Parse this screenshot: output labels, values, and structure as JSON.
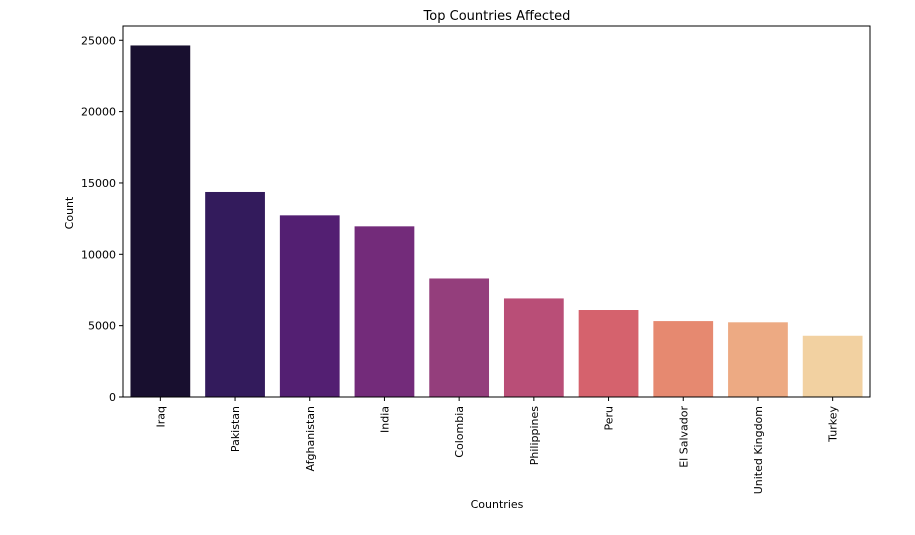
{
  "chart_data": {
    "type": "bar",
    "title": "Top Countries Affected",
    "xlabel": "Countries",
    "ylabel": "Count",
    "categories": [
      "Iraq",
      "Pakistan",
      "Afghanistan",
      "India",
      "Colombia",
      "Philippines",
      "Peru",
      "El Salvador",
      "United Kingdom",
      "Turkey"
    ],
    "values": [
      24636,
      14368,
      12731,
      11960,
      8306,
      6908,
      6096,
      5320,
      5235,
      4292
    ],
    "ylim": [
      0,
      26000
    ],
    "yticks": [
      0,
      5000,
      10000,
      15000,
      20000,
      25000
    ],
    "ytick_labels": [
      "0",
      "5000",
      "10000",
      "15000",
      "20000",
      "25000"
    ],
    "grid": false,
    "colors": [
      "#180f2f",
      "#331b5c",
      "#531f72",
      "#732b7a",
      "#943e7c",
      "#b94e77",
      "#d5626d",
      "#e68970",
      "#edaa83",
      "#f2d1a1"
    ]
  }
}
